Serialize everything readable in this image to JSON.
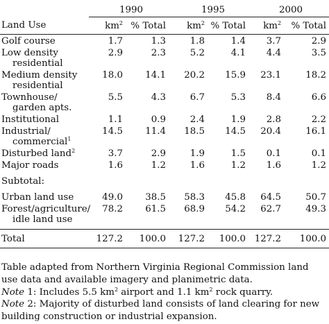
{
  "table": {
    "years": [
      "1990",
      "1995",
      "2000"
    ],
    "land_use_header": "Land Use",
    "unit_km": "km",
    "unit_sup": "2",
    "pct_total": "% Total",
    "rows": [
      {
        "l1": "Golf course",
        "l2": "",
        "sup": "",
        "v": [
          "1.7",
          "1.3",
          "1.8",
          "1.4",
          "3.7",
          "2.9"
        ]
      },
      {
        "l1": "Low density",
        "l2": "residential",
        "sup": "",
        "v": [
          "2.9",
          "2.3",
          "5.2",
          "4.1",
          "4.4",
          "3.5"
        ]
      },
      {
        "l1": "Medium density",
        "l2": "residential",
        "sup": "",
        "v": [
          "18.0",
          "14.1",
          "20.2",
          "15.9",
          "23.1",
          "18.2"
        ]
      },
      {
        "l1": "Townhouse/",
        "l2": "garden apts.",
        "sup": "",
        "v": [
          "5.5",
          "4.3",
          "6.7",
          "5.3",
          "8.4",
          "6.6"
        ]
      },
      {
        "l1": "Institutional",
        "l2": "",
        "sup": "",
        "v": [
          "1.1",
          "0.9",
          "2.4",
          "1.9",
          "2.8",
          "2.2"
        ]
      },
      {
        "l1": "Industrial/",
        "l2": "commercial",
        "sup": "1",
        "v": [
          "14.5",
          "11.4",
          "18.5",
          "14.5",
          "20.4",
          "16.1"
        ]
      },
      {
        "l1": "Disturbed land",
        "l2": "",
        "sup": "2",
        "v": [
          "3.7",
          "2.9",
          "1.9",
          "1.5",
          "0.1",
          "0.1"
        ]
      },
      {
        "l1": "Major roads",
        "l2": "",
        "sup": "",
        "v": [
          "1.6",
          "1.2",
          "1.6",
          "1.2",
          "1.6",
          "1.2"
        ]
      }
    ],
    "subtotal_label": "Subtotal:",
    "urban": {
      "label": "Urban land use",
      "v": [
        "49.0",
        "38.5",
        "58.3",
        "45.8",
        "64.5",
        "50.7"
      ]
    },
    "forest": {
      "l1": "Forest/agriculture/",
      "l2": "idle land use",
      "v": [
        "78.2",
        "61.5",
        "68.9",
        "54.2",
        "62.7",
        "49.3"
      ]
    },
    "total": {
      "label": "Total",
      "v": [
        "127.2",
        "100.0",
        "127.2",
        "100.0",
        "127.2",
        "100.0"
      ]
    }
  },
  "notes": {
    "source": "Table adapted from Northern Virginia Regional Commission land use data and available imagery and planimetric data.",
    "note1_label": "Note",
    "note1_a": " 1: Includes 5.5 km",
    "note1_sup": "2",
    "note1_b": " airport and 1.1 km",
    "note1_sup2": "2",
    "note1_c": " rock quarry.",
    "note2_label": "Note",
    "note2_text": " 2: Majority of disturbed land consists of land clearing for new building construction or industrial expansion."
  }
}
